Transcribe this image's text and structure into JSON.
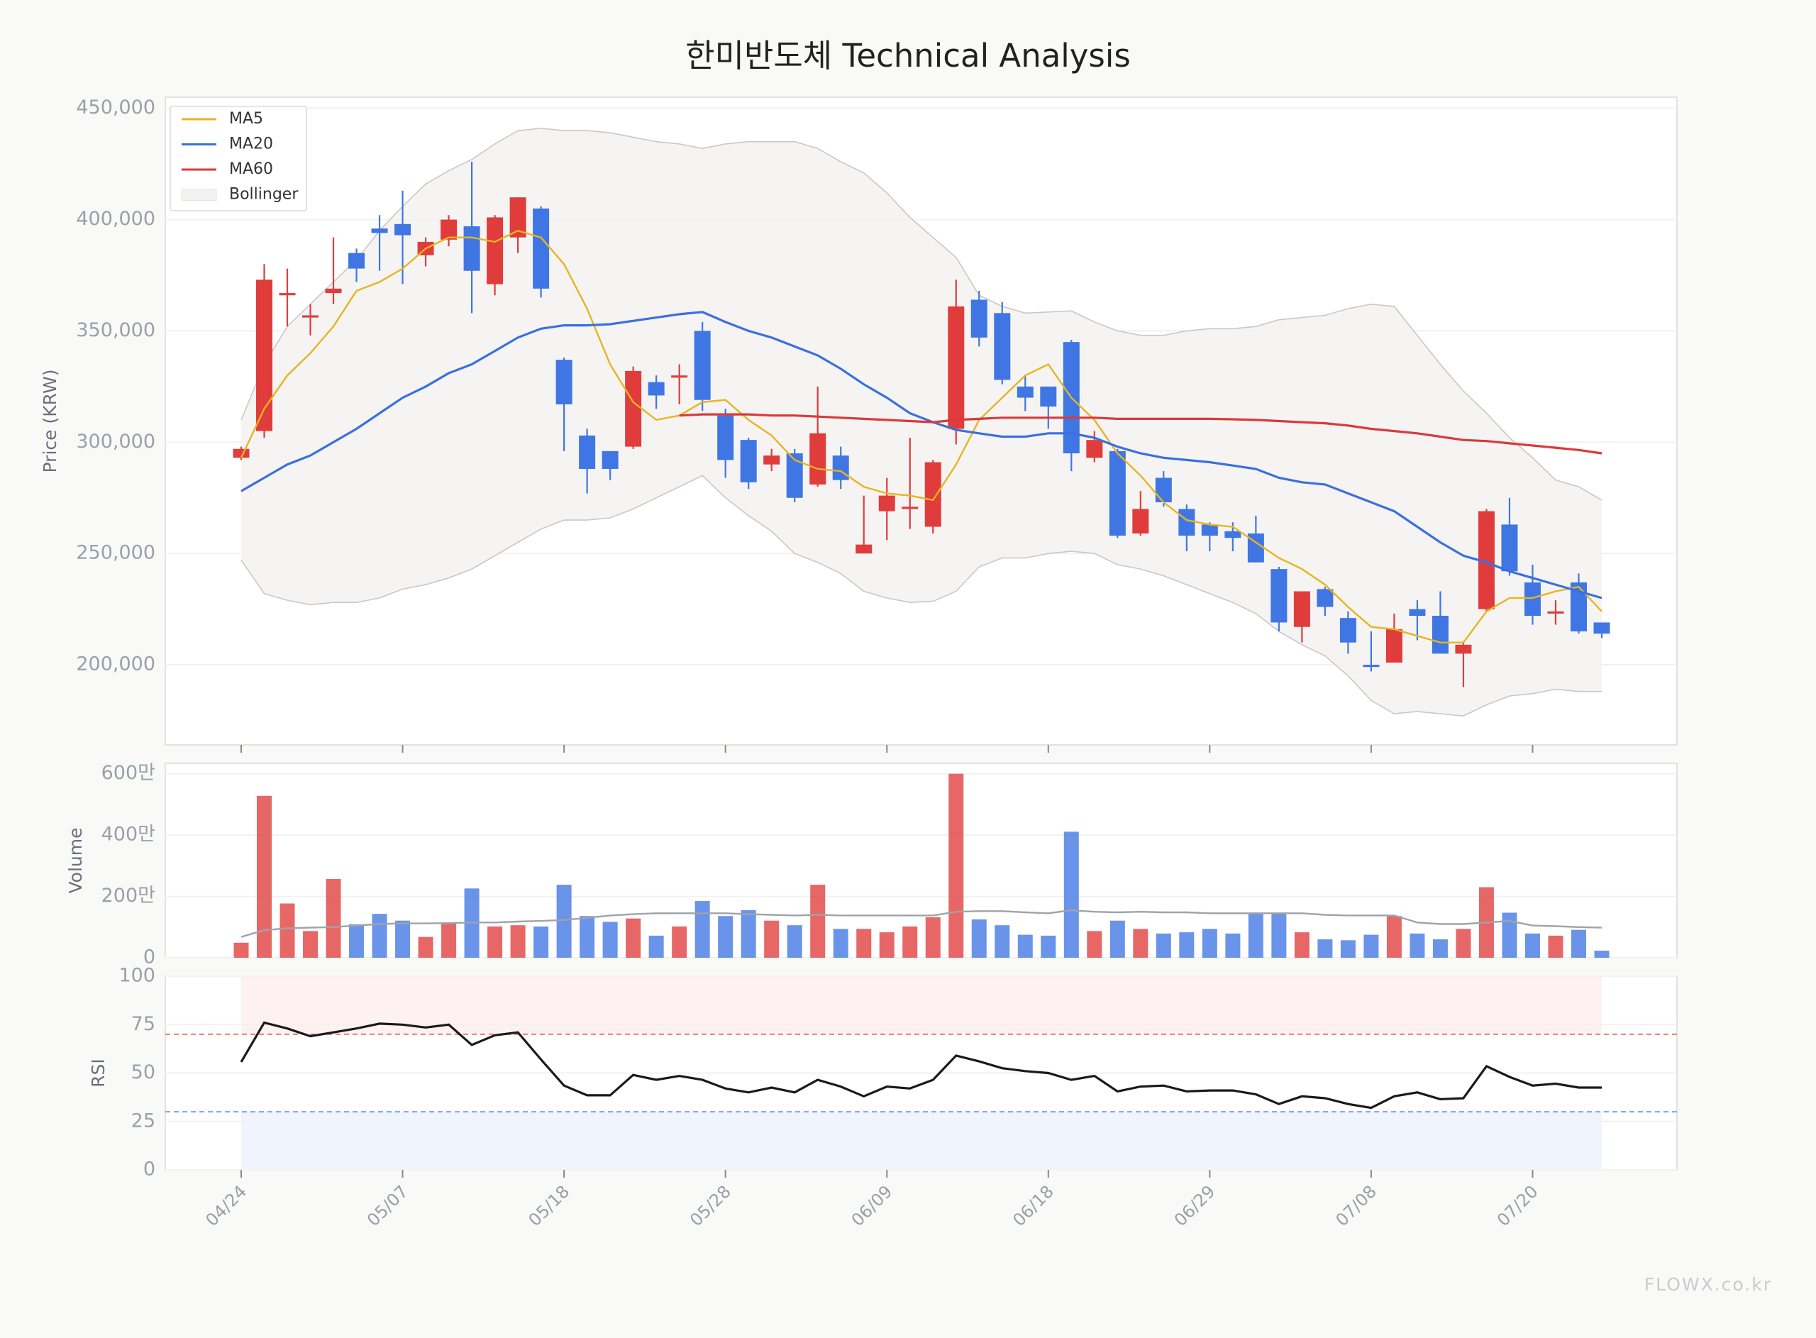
{
  "chart_data": {
    "type": "candlestick",
    "title": "한미반도체 Technical Analysis",
    "ylabel": "Price (KRW)",
    "watermark": "FLOWX.co.kr",
    "grid": true,
    "legend": "upper left",
    "up_color": "#e03c3c",
    "down_color": "#3f76e4",
    "categories": [
      "04/24",
      null,
      null,
      null,
      null,
      null,
      null,
      "05/07",
      null,
      null,
      null,
      null,
      null,
      null,
      "05/18",
      null,
      null,
      null,
      null,
      null,
      null,
      "05/28",
      null,
      null,
      null,
      null,
      null,
      null,
      "06/09",
      null,
      null,
      null,
      null,
      null,
      null,
      "06/18",
      null,
      null,
      null,
      null,
      null,
      null,
      "06/29",
      null,
      null,
      null,
      null,
      null,
      null,
      "07/08",
      null,
      null,
      null,
      null,
      null,
      null,
      "07/20",
      null,
      null,
      null
    ],
    "open": [
      293000,
      305000,
      366000,
      356000,
      367000,
      385000,
      396000,
      398000,
      384000,
      391000,
      397000,
      371000,
      392000,
      405000,
      337000,
      303000,
      296000,
      298000,
      327000,
      329000,
      350000,
      312000,
      301000,
      290000,
      295000,
      281000,
      294000,
      250000,
      269000,
      270000,
      262000,
      306000,
      364000,
      358000,
      325000,
      325000,
      345000,
      293000,
      296000,
      259000,
      284000,
      270000,
      263000,
      260000,
      259000,
      243000,
      217000,
      234000,
      221000,
      200000,
      201000,
      225000,
      222000,
      205000,
      225000,
      263000,
      237000,
      223000,
      237000,
      219000
    ],
    "high": [
      298000,
      380000,
      378000,
      362000,
      392000,
      387000,
      402000,
      413000,
      392000,
      402000,
      426000,
      402000,
      410000,
      406000,
      338000,
      306000,
      296000,
      334000,
      330000,
      335000,
      354000,
      315000,
      302000,
      297000,
      297000,
      325000,
      298000,
      276000,
      284000,
      302000,
      292000,
      373000,
      368000,
      363000,
      330000,
      325000,
      346000,
      305000,
      297000,
      278000,
      287000,
      272000,
      264000,
      264000,
      267000,
      244000,
      233000,
      235000,
      224000,
      215000,
      223000,
      229000,
      233000,
      210000,
      270000,
      275000,
      245000,
      229000,
      241000,
      219000
    ],
    "low": [
      292000,
      302000,
      352000,
      348000,
      362000,
      372000,
      377000,
      371000,
      379000,
      388000,
      358000,
      366000,
      385000,
      365000,
      296000,
      277000,
      283000,
      297000,
      315000,
      317000,
      314000,
      284000,
      279000,
      287000,
      273000,
      280000,
      279000,
      250000,
      256000,
      261000,
      259000,
      299000,
      343000,
      326000,
      314000,
      306000,
      287000,
      291000,
      257000,
      258000,
      271000,
      251000,
      251000,
      251000,
      246000,
      215000,
      210000,
      222000,
      205000,
      197000,
      201000,
      211000,
      205000,
      190000,
      224000,
      240000,
      218000,
      218000,
      214000,
      212000
    ],
    "close": [
      297000,
      373000,
      367000,
      357000,
      369000,
      378000,
      394000,
      393000,
      390000,
      400000,
      377000,
      401000,
      410000,
      369000,
      317000,
      288000,
      288000,
      332000,
      321000,
      330000,
      319000,
      292000,
      282000,
      294000,
      275000,
      304000,
      283000,
      254000,
      276000,
      271000,
      291000,
      361000,
      347000,
      328000,
      320000,
      316000,
      295000,
      301000,
      258000,
      270000,
      273000,
      258000,
      258000,
      257000,
      246000,
      219000,
      233000,
      226000,
      210000,
      199000,
      216000,
      222000,
      205000,
      209000,
      269000,
      242000,
      222000,
      224000,
      215000,
      214000
    ],
    "ylim": [
      164000,
      455000
    ],
    "yticks": [
      {
        "value": 200000,
        "label": "200,000"
      },
      {
        "value": 250000,
        "label": "250,000"
      },
      {
        "value": 300000,
        "label": "300,000"
      },
      {
        "value": 350000,
        "label": "350,000"
      },
      {
        "value": 400000,
        "label": "400,000"
      },
      {
        "value": 450000,
        "label": "450,000"
      }
    ],
    "series": [
      {
        "name": "MA5",
        "color": "#e8b420",
        "values": [
          293000,
          315000,
          330000,
          340000,
          352000,
          368000,
          372000,
          378000,
          387000,
          392000,
          392000,
          390000,
          395000,
          392000,
          380000,
          360000,
          335000,
          318000,
          310000,
          312000,
          318000,
          319000,
          310000,
          303000,
          292000,
          288000,
          287000,
          280000,
          277000,
          276000,
          274000,
          290000,
          310000,
          320000,
          330000,
          335000,
          320000,
          310000,
          295000,
          285000,
          273000,
          265000,
          263000,
          262000,
          255000,
          248000,
          243000,
          236000,
          226000,
          217000,
          216000,
          213000,
          210000,
          210000,
          224000,
          230000,
          230000,
          233000,
          235000,
          224000
        ]
      },
      {
        "name": "MA20",
        "color": "#3b6fe0",
        "values": [
          278000,
          284000,
          290000,
          294000,
          300000,
          306000,
          313000,
          320000,
          325000,
          331000,
          335000,
          341000,
          347000,
          351000,
          352500,
          352500,
          353000,
          354500,
          356000,
          357500,
          358500,
          354000,
          350000,
          347000,
          343000,
          339000,
          333000,
          326000,
          320000,
          313000,
          309000,
          305500,
          304000,
          302500,
          302500,
          304000,
          304000,
          302000,
          298000,
          295000,
          293000,
          292000,
          291000,
          289500,
          288000,
          284000,
          282000,
          281000,
          277000,
          273000,
          269000,
          262000,
          255000,
          249000,
          246000,
          242000,
          239000,
          236000,
          233000,
          230000
        ]
      },
      {
        "name": "MA60",
        "color": "#d93a3a",
        "values": [
          null,
          null,
          null,
          null,
          null,
          null,
          null,
          null,
          null,
          null,
          null,
          null,
          null,
          null,
          null,
          null,
          null,
          null,
          null,
          312000,
          312500,
          312500,
          312500,
          312000,
          312000,
          311500,
          311000,
          310500,
          310000,
          309500,
          309000,
          310000,
          310500,
          311000,
          311000,
          311000,
          311000,
          311000,
          310500,
          310500,
          310500,
          310500,
          310500,
          310300,
          310000,
          309500,
          309000,
          308500,
          307500,
          306000,
          305000,
          304000,
          302500,
          301000,
          300500,
          299500,
          298500,
          297500,
          296500,
          295000
        ]
      }
    ],
    "bollinger": {
      "name": "Bollinger",
      "color": "#f3f2f1",
      "edge_color": "#c8c8c8",
      "upper": [
        310000,
        335000,
        352000,
        362000,
        372000,
        382000,
        395000,
        406000,
        416000,
        422000,
        427000,
        434000,
        440000,
        441000,
        440000,
        440000,
        439000,
        437000,
        435000,
        434000,
        432000,
        434000,
        435000,
        435000,
        435000,
        432000,
        426000,
        421000,
        412000,
        401000,
        392000,
        383000,
        366000,
        361000,
        358000,
        358500,
        359000,
        354000,
        350000,
        348000,
        348000,
        350000,
        351000,
        351000,
        352000,
        355000,
        356000,
        357000,
        360000,
        362000,
        361000,
        348000,
        335000,
        323000,
        313000,
        302000,
        293000,
        283000,
        280000,
        274000
      ],
      "lower": [
        247000,
        232000,
        229000,
        227000,
        228000,
        228000,
        230000,
        234000,
        236000,
        239000,
        243000,
        249000,
        255000,
        261000,
        265000,
        265000,
        266000,
        270000,
        275000,
        280000,
        285000,
        275000,
        267000,
        260000,
        250000,
        246000,
        241000,
        233000,
        230000,
        228000,
        228500,
        233000,
        244000,
        248000,
        248000,
        250000,
        251000,
        250000,
        245000,
        243000,
        240000,
        236000,
        232000,
        228000,
        223000,
        215000,
        209000,
        204000,
        195000,
        184000,
        178000,
        179000,
        178000,
        177000,
        182000,
        186000,
        187000,
        189000,
        188000,
        188000
      ]
    },
    "volume": {
      "ylabel": "Volume",
      "ylim": [
        0,
        6340000
      ],
      "yticks": [
        0,
        {
          "value": 2000000,
          "label": "200만"
        },
        {
          "value": 4000000,
          "label": "400만"
        },
        {
          "value": 6000000,
          "label": "600만"
        }
      ],
      "values": [
        490000,
        5280000,
        1770000,
        870000,
        2570000,
        1090000,
        1430000,
        1210000,
        680000,
        1130000,
        2260000,
        1020000,
        1060000,
        1020000,
        2380000,
        1360000,
        1170000,
        1280000,
        720000,
        1020000,
        1850000,
        1360000,
        1550000,
        1210000,
        1060000,
        2380000,
        940000,
        940000,
        830000,
        1020000,
        1320000,
        6000000,
        1250000,
        1060000,
        750000,
        720000,
        4110000,
        870000,
        1210000,
        940000,
        790000,
        830000,
        940000,
        790000,
        1470000,
        1430000,
        830000,
        600000,
        570000,
        750000,
        1360000,
        790000,
        600000,
        940000,
        2300000,
        1470000,
        790000,
        720000,
        910000,
        230000
      ],
      "ma_color": "#a0a3a8",
      "ma": [
        680000,
        900000,
        960000,
        980000,
        1000000,
        1050000,
        1100000,
        1120000,
        1120000,
        1130000,
        1150000,
        1150000,
        1180000,
        1200000,
        1230000,
        1300000,
        1380000,
        1420000,
        1450000,
        1450000,
        1450000,
        1450000,
        1420000,
        1400000,
        1380000,
        1400000,
        1380000,
        1380000,
        1380000,
        1380000,
        1380000,
        1500000,
        1520000,
        1520000,
        1480000,
        1450000,
        1550000,
        1500000,
        1480000,
        1500000,
        1480000,
        1480000,
        1450000,
        1450000,
        1450000,
        1450000,
        1450000,
        1400000,
        1380000,
        1380000,
        1380000,
        1150000,
        1100000,
        1100000,
        1150000,
        1200000,
        1050000,
        1030000,
        1000000,
        980000
      ]
    },
    "rsi": {
      "ylabel": "RSI",
      "ylim": [
        0,
        100
      ],
      "yticks": [
        0,
        25,
        50,
        75,
        100
      ],
      "overbought": 70,
      "oversold": 30,
      "color": "#1a1a1a",
      "values": [
        55.7,
        76,
        73,
        69,
        71,
        73,
        75.5,
        75,
        73.5,
        75,
        64.5,
        69.5,
        71,
        57,
        43.5,
        38.5,
        38.5,
        49,
        46.5,
        48.5,
        46.5,
        42,
        40,
        42.5,
        40,
        46.5,
        43,
        38,
        43,
        42,
        46.5,
        59,
        56,
        52.5,
        51,
        50,
        46.5,
        48.5,
        40.5,
        43,
        43.5,
        40.5,
        41,
        41,
        39,
        34,
        38,
        37,
        34,
        32,
        38,
        40,
        36.5,
        37,
        53.5,
        48,
        43.5,
        44.5,
        42.5,
        42.5
      ]
    }
  }
}
